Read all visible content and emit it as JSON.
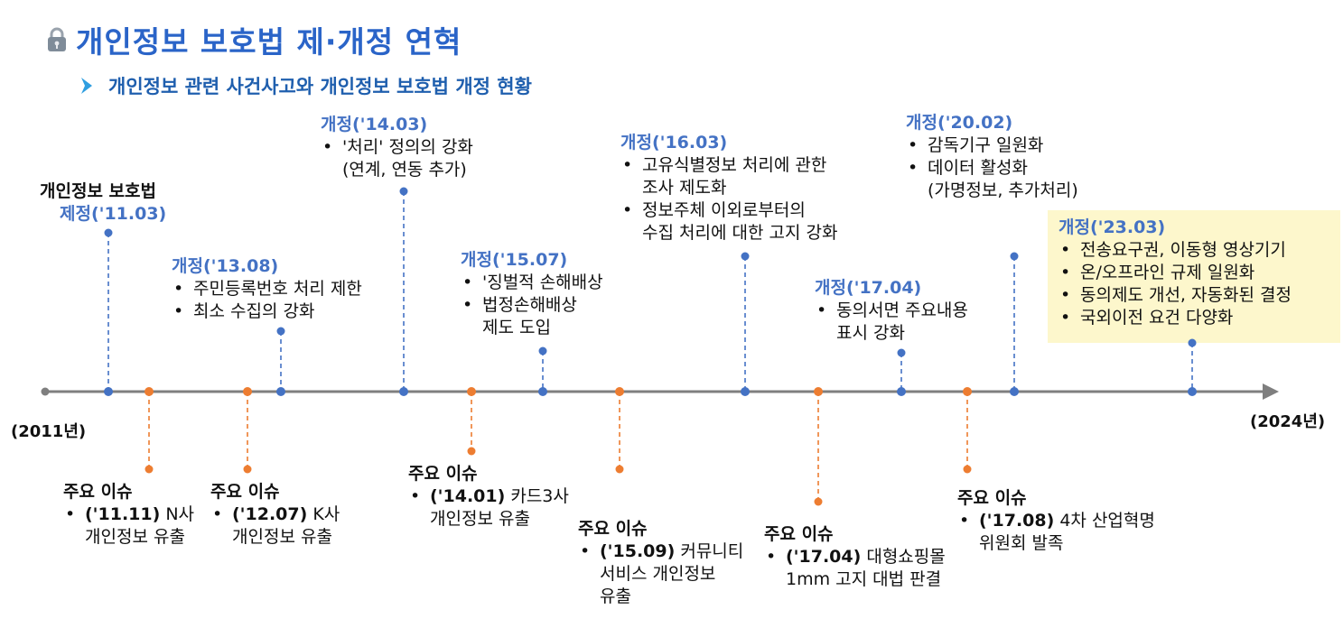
{
  "header": {
    "title": "개인정보 보호법 제·개정 연혁",
    "subtitle": "개인정보 관련 사건사고와 개인정보 보호법 개정 현황"
  },
  "timeline": {
    "start_label": "(2011년)",
    "end_label": "(2024년)"
  },
  "amendments": [
    {
      "head_top": "개인정보 보호법",
      "head": "제정('11.03)",
      "items": []
    },
    {
      "head": "개정('13.08)",
      "items": [
        {
          "text": "주민등록번호 처리 제한"
        },
        {
          "text": "최소 수집의 강화"
        }
      ]
    },
    {
      "head": "개정('14.03)",
      "items": [
        {
          "text": "'처리' 정의의 강화",
          "cont": "(연계, 연동 추가)"
        }
      ]
    },
    {
      "head": "개정('15.07)",
      "items": [
        {
          "text": "'징벌적 손해배상"
        },
        {
          "text": "법정손해배상",
          "cont": "제도 도입"
        }
      ]
    },
    {
      "head": "개정('16.03)",
      "items": [
        {
          "text": "고유식별정보 처리에 관한",
          "cont": "조사 제도화"
        },
        {
          "text": "정보주체 이외로부터의",
          "cont": "수집 처리에 대한 고지 강화"
        }
      ]
    },
    {
      "head": "개정('17.04)",
      "items": [
        {
          "text": "동의서면 주요내용",
          "cont": "표시 강화"
        }
      ]
    },
    {
      "head": "개정('20.02)",
      "items": [
        {
          "text": "감독기구 일원화"
        },
        {
          "text": "데이터 활성화",
          "cont": "(가명정보, 추가처리)"
        }
      ]
    },
    {
      "head": "개정('23.03)",
      "items": [
        {
          "text": "전송요구권, 이동형 영상기기"
        },
        {
          "text": "온/오프라인 규제 일원화"
        },
        {
          "text": "동의제도 개선, 자동화된 결정"
        },
        {
          "text": "국외이전 요건 다양화"
        }
      ]
    }
  ],
  "issues": [
    {
      "head": "주요 이슈",
      "date": "('11.11)",
      "text": " N사",
      "cont": "개인정보 유출"
    },
    {
      "head": "주요 이슈",
      "date": "('12.07)",
      "text": " K사",
      "cont": "개인정보 유출"
    },
    {
      "head": "주요 이슈",
      "date": "('14.01)",
      "text": " 카드3사",
      "cont": "개인정보 유출"
    },
    {
      "head": "주요 이슈",
      "date": "('15.09)",
      "text": " 커뮤니티",
      "cont": "서비스 개인정보",
      "cont2": "유출"
    },
    {
      "head": "주요 이슈",
      "date": "('17.04)",
      "text": " 대형쇼핑몰",
      "cont": "1mm 고지 대법 판결"
    },
    {
      "head": "주요 이슈",
      "date": "('17.08)",
      "text": " 4차 산업혁명",
      "cont": "위원회 발족"
    }
  ],
  "colors": {
    "title": "#2a64c8",
    "subtitle": "#1f5fae",
    "amendment": "#4472c4",
    "issue": "#ed7d31",
    "axis": "#7f7f7f",
    "highlight": "#fdf7cc"
  },
  "icons": {
    "title": "lock-icon",
    "subtitle": "chevron-right-icon"
  }
}
